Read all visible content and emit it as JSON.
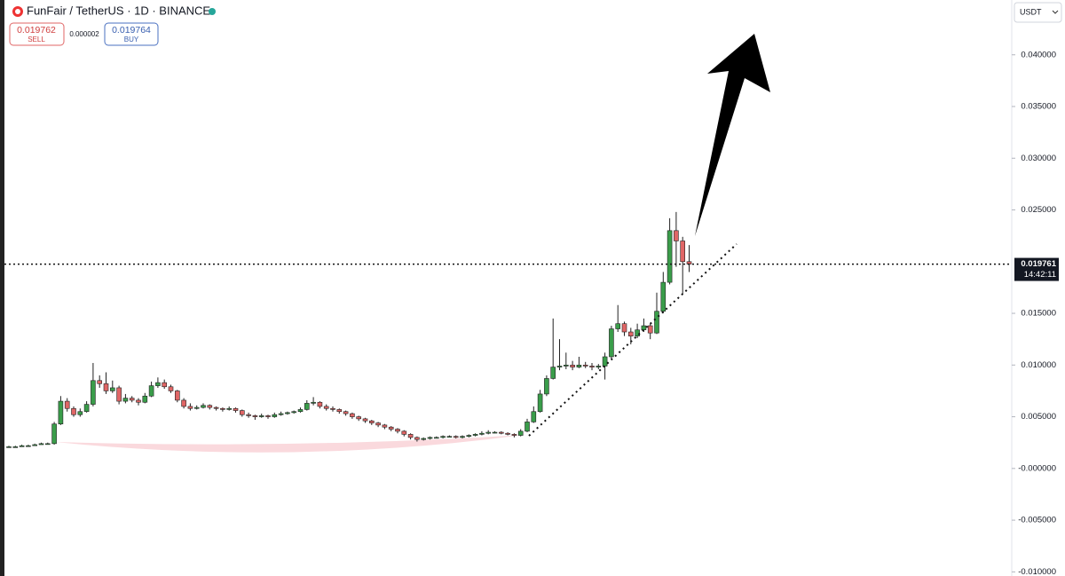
{
  "chart_data": {
    "type": "candlestick",
    "title": "FunFair / TetherUS · 1D · BINANCE",
    "sell": {
      "price": 0.019762,
      "label": "SELL"
    },
    "spread": 2e-06,
    "buy": {
      "price": 0.019764,
      "label": "BUY"
    },
    "currency": "USDT",
    "last_price": 0.019761,
    "countdown": "14:42:11",
    "up_color": "#3a9d4a",
    "down_color": "#e06666",
    "ylim": [
      -0.0104,
      0.0453
    ],
    "yticks": [
      {
        "value": 0.04,
        "label": "0.040000"
      },
      {
        "value": 0.035,
        "label": "0.035000"
      },
      {
        "value": 0.03,
        "label": "0.030000"
      },
      {
        "value": 0.025,
        "label": "0.025000"
      },
      {
        "value": 0.015,
        "label": "0.015000"
      },
      {
        "value": 0.01,
        "label": "0.010000"
      },
      {
        "value": 0.005,
        "label": "0.005000"
      },
      {
        "value": 0,
        "label": "-0.000000"
      },
      {
        "value": -0.005,
        "label": "-0.005000"
      },
      {
        "value": -0.01,
        "label": "-0.010000"
      }
    ],
    "candles": [
      [
        0.0021,
        0.0022,
        0.002,
        0.0021
      ],
      [
        0.0021,
        0.0022,
        0.002,
        0.0021
      ],
      [
        0.0021,
        0.0023,
        0.0021,
        0.0022
      ],
      [
        0.0022,
        0.0023,
        0.0021,
        0.0022
      ],
      [
        0.0022,
        0.0024,
        0.0022,
        0.0023
      ],
      [
        0.0023,
        0.0025,
        0.0023,
        0.0024
      ],
      [
        0.0024,
        0.0025,
        0.0023,
        0.0024
      ],
      [
        0.0024,
        0.0045,
        0.0023,
        0.0043
      ],
      [
        0.0043,
        0.007,
        0.0042,
        0.0065
      ],
      [
        0.0065,
        0.0068,
        0.0055,
        0.0058
      ],
      [
        0.0058,
        0.006,
        0.005,
        0.0052
      ],
      [
        0.0052,
        0.0058,
        0.005,
        0.0055
      ],
      [
        0.0055,
        0.0065,
        0.0054,
        0.0062
      ],
      [
        0.0062,
        0.0102,
        0.006,
        0.0085
      ],
      [
        0.0085,
        0.009,
        0.0078,
        0.0082
      ],
      [
        0.0082,
        0.0093,
        0.0072,
        0.0075
      ],
      [
        0.0075,
        0.0085,
        0.0073,
        0.0078
      ],
      [
        0.0078,
        0.008,
        0.0062,
        0.0065
      ],
      [
        0.0065,
        0.0072,
        0.0063,
        0.0068
      ],
      [
        0.0068,
        0.007,
        0.0064,
        0.0066
      ],
      [
        0.0066,
        0.0068,
        0.0061,
        0.0064
      ],
      [
        0.0064,
        0.0073,
        0.0063,
        0.007
      ],
      [
        0.007,
        0.0084,
        0.0069,
        0.008
      ],
      [
        0.008,
        0.0088,
        0.0078,
        0.0083
      ],
      [
        0.0083,
        0.0086,
        0.0077,
        0.0079
      ],
      [
        0.0079,
        0.0081,
        0.0073,
        0.0075
      ],
      [
        0.0075,
        0.0076,
        0.0064,
        0.0066
      ],
      [
        0.0066,
        0.0068,
        0.0058,
        0.006
      ],
      [
        0.006,
        0.0063,
        0.0056,
        0.0058
      ],
      [
        0.0058,
        0.0061,
        0.0057,
        0.0059
      ],
      [
        0.0059,
        0.0063,
        0.0058,
        0.0061
      ],
      [
        0.0061,
        0.0062,
        0.0057,
        0.0059
      ],
      [
        0.0059,
        0.006,
        0.0056,
        0.0058
      ],
      [
        0.0058,
        0.0059,
        0.0055,
        0.0057
      ],
      [
        0.0057,
        0.006,
        0.0056,
        0.0058
      ],
      [
        0.0058,
        0.0059,
        0.0054,
        0.0056
      ],
      [
        0.0056,
        0.0057,
        0.005,
        0.0052
      ],
      [
        0.0052,
        0.0054,
        0.0049,
        0.0051
      ],
      [
        0.0051,
        0.0052,
        0.0047,
        0.005
      ],
      [
        0.005,
        0.0053,
        0.0049,
        0.0051
      ],
      [
        0.0051,
        0.0052,
        0.0048,
        0.005
      ],
      [
        0.005,
        0.0054,
        0.0049,
        0.0052
      ],
      [
        0.0052,
        0.0055,
        0.0051,
        0.0053
      ],
      [
        0.0053,
        0.0055,
        0.0052,
        0.0054
      ],
      [
        0.0054,
        0.0056,
        0.0053,
        0.0055
      ],
      [
        0.0055,
        0.0059,
        0.0054,
        0.0057
      ],
      [
        0.0057,
        0.0066,
        0.0056,
        0.0063
      ],
      [
        0.0063,
        0.0069,
        0.0061,
        0.0064
      ],
      [
        0.0064,
        0.0065,
        0.0058,
        0.006
      ],
      [
        0.006,
        0.0062,
        0.0056,
        0.0058
      ],
      [
        0.0058,
        0.006,
        0.0055,
        0.0057
      ],
      [
        0.0057,
        0.0058,
        0.0053,
        0.0055
      ],
      [
        0.0055,
        0.0056,
        0.0051,
        0.0053
      ],
      [
        0.0053,
        0.0054,
        0.0048,
        0.005
      ],
      [
        0.005,
        0.0051,
        0.0046,
        0.0048
      ],
      [
        0.0048,
        0.0049,
        0.0044,
        0.0046
      ],
      [
        0.0046,
        0.0047,
        0.0042,
        0.0044
      ],
      [
        0.0044,
        0.0045,
        0.004,
        0.0042
      ],
      [
        0.0042,
        0.0043,
        0.0038,
        0.004
      ],
      [
        0.004,
        0.0041,
        0.0036,
        0.0038
      ],
      [
        0.0038,
        0.0039,
        0.0034,
        0.0036
      ],
      [
        0.0036,
        0.0037,
        0.0031,
        0.0033
      ],
      [
        0.0033,
        0.0034,
        0.0028,
        0.003
      ],
      [
        0.003,
        0.0031,
        0.0026,
        0.0028
      ],
      [
        0.0028,
        0.003,
        0.0027,
        0.0029
      ],
      [
        0.0029,
        0.0031,
        0.0028,
        0.003
      ],
      [
        0.003,
        0.0031,
        0.0029,
        0.003
      ],
      [
        0.003,
        0.0032,
        0.0029,
        0.0031
      ],
      [
        0.0031,
        0.0032,
        0.003,
        0.0031
      ],
      [
        0.0031,
        0.0032,
        0.0029,
        0.003
      ],
      [
        0.003,
        0.0032,
        0.0029,
        0.0031
      ],
      [
        0.0031,
        0.0033,
        0.003,
        0.0032
      ],
      [
        0.0032,
        0.0034,
        0.0031,
        0.0033
      ],
      [
        0.0033,
        0.0036,
        0.0032,
        0.0034
      ],
      [
        0.0034,
        0.0037,
        0.0033,
        0.0035
      ],
      [
        0.0035,
        0.0036,
        0.0034,
        0.0035
      ],
      [
        0.0035,
        0.0036,
        0.0033,
        0.0034
      ],
      [
        0.0034,
        0.0035,
        0.0032,
        0.0033
      ],
      [
        0.0033,
        0.0034,
        0.003,
        0.0032
      ],
      [
        0.0032,
        0.0038,
        0.0031,
        0.0036
      ],
      [
        0.0036,
        0.0048,
        0.0035,
        0.0045
      ],
      [
        0.0045,
        0.006,
        0.0044,
        0.0055
      ],
      [
        0.0055,
        0.0076,
        0.0054,
        0.0072
      ],
      [
        0.0072,
        0.009,
        0.007,
        0.0087
      ],
      [
        0.0087,
        0.0145,
        0.0086,
        0.0098
      ],
      [
        0.0098,
        0.0125,
        0.0095,
        0.0099
      ],
      [
        0.0099,
        0.0112,
        0.0096,
        0.01
      ],
      [
        0.01,
        0.0104,
        0.0095,
        0.0098
      ],
      [
        0.0098,
        0.0108,
        0.0097,
        0.01
      ],
      [
        0.01,
        0.0103,
        0.0097,
        0.0099
      ],
      [
        0.0099,
        0.0102,
        0.0095,
        0.0098
      ],
      [
        0.0098,
        0.0101,
        0.0096,
        0.0099
      ],
      [
        0.0099,
        0.0112,
        0.0086,
        0.0108
      ],
      [
        0.0108,
        0.0138,
        0.0106,
        0.0135
      ],
      [
        0.0135,
        0.0158,
        0.0132,
        0.014
      ],
      [
        0.014,
        0.0142,
        0.0128,
        0.0132
      ],
      [
        0.0132,
        0.0136,
        0.012,
        0.0128
      ],
      [
        0.0128,
        0.014,
        0.0126,
        0.0134
      ],
      [
        0.0134,
        0.0145,
        0.0132,
        0.0138
      ],
      [
        0.0138,
        0.014,
        0.0125,
        0.0131
      ],
      [
        0.0131,
        0.017,
        0.013,
        0.0152
      ],
      [
        0.0152,
        0.019,
        0.015,
        0.018
      ],
      [
        0.018,
        0.0242,
        0.0178,
        0.023
      ],
      [
        0.023,
        0.0248,
        0.0195,
        0.022
      ],
      [
        0.022,
        0.0224,
        0.0168,
        0.02
      ],
      [
        0.02,
        0.0216,
        0.019,
        0.01976
      ]
    ]
  }
}
